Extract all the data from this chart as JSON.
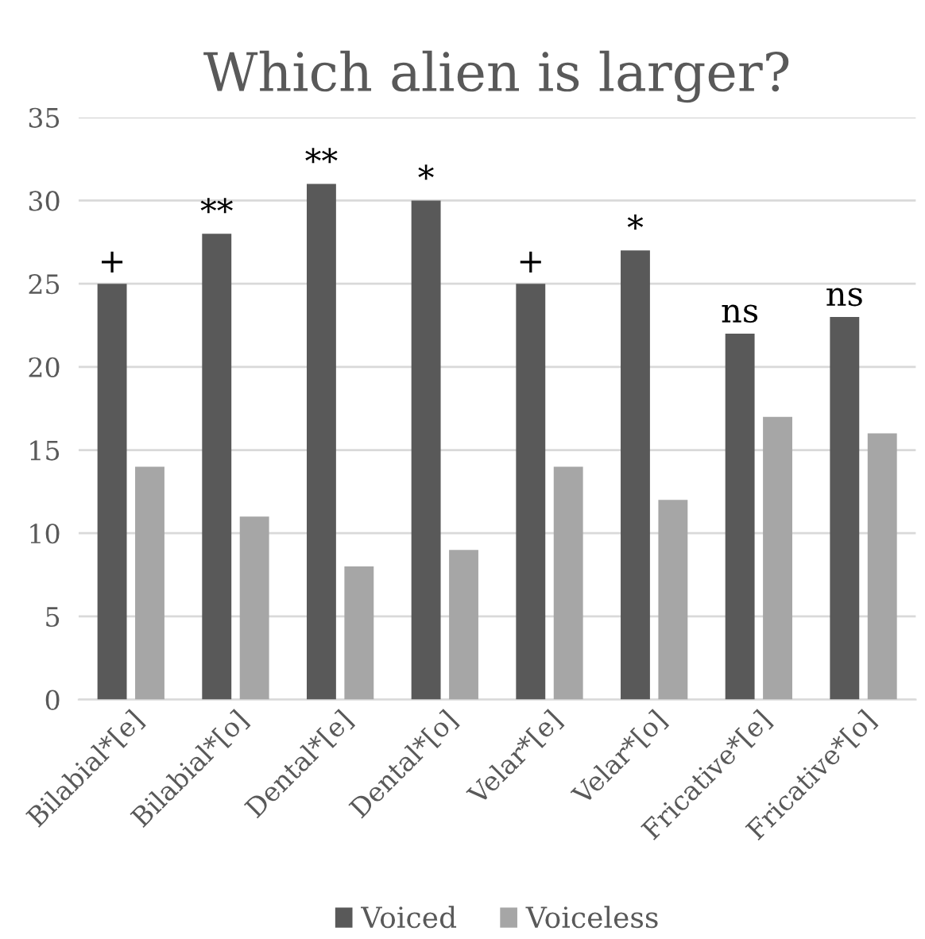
{
  "chart_data": {
    "type": "bar",
    "title": "Which alien is larger?",
    "categories": [
      "Bilabial*[e]",
      "Bilabial*[o]",
      "Dental*[e]",
      "Dental*[o]",
      "Velar*[e]",
      "Velar*[o]",
      "Fricative*[e]",
      "Fricative*[o]"
    ],
    "series": [
      {
        "name": "Voiced",
        "color": "#595959",
        "values": [
          25,
          28,
          31,
          30,
          25,
          27,
          22,
          23
        ]
      },
      {
        "name": "Voiceless",
        "color": "#a6a6a6",
        "values": [
          14,
          11,
          8,
          9,
          14,
          12,
          17,
          16
        ]
      }
    ],
    "ylim": [
      0,
      35
    ],
    "yticks": [
      0,
      5,
      10,
      15,
      20,
      25,
      30,
      35
    ],
    "grid": "y",
    "legend": "bottom",
    "annotations": [
      "+",
      "**",
      "**",
      "*",
      "+",
      "*",
      "ns",
      "ns"
    ]
  }
}
